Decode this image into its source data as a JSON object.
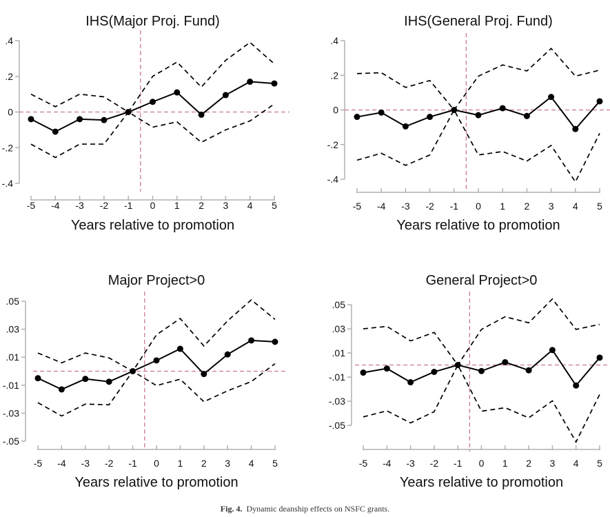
{
  "caption": {
    "label": "Fig. 4.",
    "text": "Dynamic deanship effects on NSFC grants."
  },
  "colors": {
    "ref_line": "#c77a8e",
    "series": "#000000",
    "axis": "#b0b0b0"
  },
  "chart_data": [
    {
      "type": "line",
      "title": "IHS(Major Proj. Fund)",
      "xlabel": "Years relative to promotion",
      "ylabel": "",
      "x": [
        -5,
        -4,
        -3,
        -2,
        -1,
        0,
        1,
        2,
        3,
        4,
        5
      ],
      "xticks": [
        "-5",
        "-4",
        "-3",
        "-2",
        "-1",
        "0",
        "1",
        "2",
        "3",
        "4",
        "5"
      ],
      "yticks": [
        0.4,
        0.2,
        0,
        -0.2,
        -0.4
      ],
      "ytick_labels": [
        ".4",
        ".2",
        "0",
        "-.2",
        "-.4"
      ],
      "ylim": [
        -0.4,
        0.4
      ],
      "ref_lines": {
        "x": -0.5,
        "y": 0
      },
      "series": [
        {
          "name": "estimate",
          "style": "solid-markers",
          "values": [
            -0.04,
            -0.11,
            -0.04,
            -0.045,
            0,
            0.057,
            0.11,
            -0.015,
            0.095,
            0.17,
            0.16
          ]
        },
        {
          "name": "upper CI",
          "style": "dashed",
          "values": [
            0.1,
            0.03,
            0.1,
            0.085,
            0,
            0.2,
            0.28,
            0.14,
            0.29,
            0.39,
            0.27
          ]
        },
        {
          "name": "lower CI",
          "style": "dashed",
          "values": [
            -0.18,
            -0.255,
            -0.18,
            -0.18,
            0,
            -0.085,
            -0.055,
            -0.17,
            -0.1,
            -0.05,
            0.045
          ]
        }
      ]
    },
    {
      "type": "line",
      "title": "IHS(General Proj. Fund)",
      "xlabel": "Years relative to promotion",
      "ylabel": "",
      "x": [
        -5,
        -4,
        -3,
        -2,
        -1,
        0,
        1,
        2,
        3,
        4,
        5
      ],
      "xticks": [
        "-5",
        "-4",
        "-3",
        "-2",
        "-1",
        "0",
        "1",
        "2",
        "3",
        "4",
        "5"
      ],
      "yticks": [
        0.4,
        0.2,
        0,
        -0.2,
        -0.4
      ],
      "ytick_labels": [
        ".4",
        ".2",
        "0",
        "-.2",
        "-.4"
      ],
      "ylim": [
        -0.4,
        0.4
      ],
      "ref_lines": {
        "x": -0.5,
        "y": 0
      },
      "series": [
        {
          "name": "estimate",
          "style": "solid-markers",
          "values": [
            -0.04,
            -0.015,
            -0.095,
            -0.04,
            0,
            -0.03,
            0.01,
            -0.035,
            0.075,
            -0.11,
            0.05
          ]
        },
        {
          "name": "upper CI",
          "style": "dashed",
          "values": [
            0.21,
            0.215,
            0.13,
            0.17,
            0,
            0.195,
            0.26,
            0.225,
            0.355,
            0.195,
            0.23
          ]
        },
        {
          "name": "lower CI",
          "style": "dashed",
          "values": [
            -0.29,
            -0.25,
            -0.32,
            -0.26,
            0,
            -0.26,
            -0.24,
            -0.295,
            -0.205,
            -0.415,
            -0.135
          ]
        }
      ]
    },
    {
      "type": "line",
      "title": "Major Project>0",
      "xlabel": "Years relative to promotion",
      "ylabel": "",
      "x": [
        -5,
        -4,
        -3,
        -2,
        -1,
        0,
        1,
        2,
        3,
        4,
        5
      ],
      "xticks": [
        "-5",
        "-4",
        "-3",
        "-2",
        "-1",
        "0",
        "1",
        "2",
        "3",
        "4",
        "5"
      ],
      "yticks": [
        0.05,
        0.03,
        0.01,
        -0.01,
        -0.03,
        -0.05
      ],
      "ytick_labels": [
        ".05",
        ".03",
        ".01",
        "-.01",
        "-.03",
        "-.05"
      ],
      "ylim": [
        -0.05,
        0.05
      ],
      "ref_lines": {
        "x": -0.5,
        "y": 0
      },
      "series": [
        {
          "name": "estimate",
          "style": "solid-markers",
          "values": [
            -0.005,
            -0.013,
            -0.0055,
            -0.0075,
            0,
            0.0077,
            0.016,
            -0.002,
            0.012,
            0.022,
            0.021
          ]
        },
        {
          "name": "upper CI",
          "style": "dashed",
          "values": [
            0.013,
            0.006,
            0.013,
            0.0095,
            0,
            0.026,
            0.0377,
            0.018,
            0.036,
            0.051,
            0.037
          ]
        },
        {
          "name": "lower CI",
          "style": "dashed",
          "values": [
            -0.0225,
            -0.032,
            -0.0235,
            -0.024,
            0,
            -0.0103,
            -0.0057,
            -0.0218,
            -0.014,
            -0.0074,
            0.0054
          ]
        }
      ]
    },
    {
      "type": "line",
      "title": "General Project>0",
      "xlabel": "Years relative to promotion",
      "ylabel": "",
      "x": [
        -5,
        -4,
        -3,
        -2,
        -1,
        0,
        1,
        2,
        3,
        4,
        5
      ],
      "xticks": [
        "-5",
        "-4",
        "-3",
        "-2",
        "-1",
        "0",
        "1",
        "2",
        "3",
        "4",
        "5"
      ],
      "yticks": [
        0.05,
        0.03,
        0.01,
        -0.01,
        -0.03,
        -0.05
      ],
      "ytick_labels": [
        ".05",
        ".03",
        ".01",
        "-.01",
        "-.03",
        "-.05"
      ],
      "ylim": [
        -0.05,
        0.05
      ],
      "ref_lines": {
        "x": -0.5,
        "y": 0
      },
      "series": [
        {
          "name": "estimate",
          "style": "solid-markers",
          "values": [
            -0.0063,
            -0.0029,
            -0.0143,
            -0.0057,
            0,
            -0.005,
            0.0023,
            -0.0044,
            0.0124,
            -0.017,
            0.0061
          ]
        },
        {
          "name": "upper CI",
          "style": "dashed",
          "values": [
            0.03,
            0.032,
            0.02,
            0.027,
            0,
            0.0295,
            0.04,
            0.035,
            0.0547,
            0.0295,
            0.0337
          ]
        },
        {
          "name": "lower CI",
          "style": "dashed",
          "values": [
            -0.043,
            -0.038,
            -0.048,
            -0.0387,
            0,
            -0.0383,
            -0.0354,
            -0.0438,
            -0.0297,
            -0.0638,
            -0.0244
          ]
        }
      ]
    }
  ]
}
